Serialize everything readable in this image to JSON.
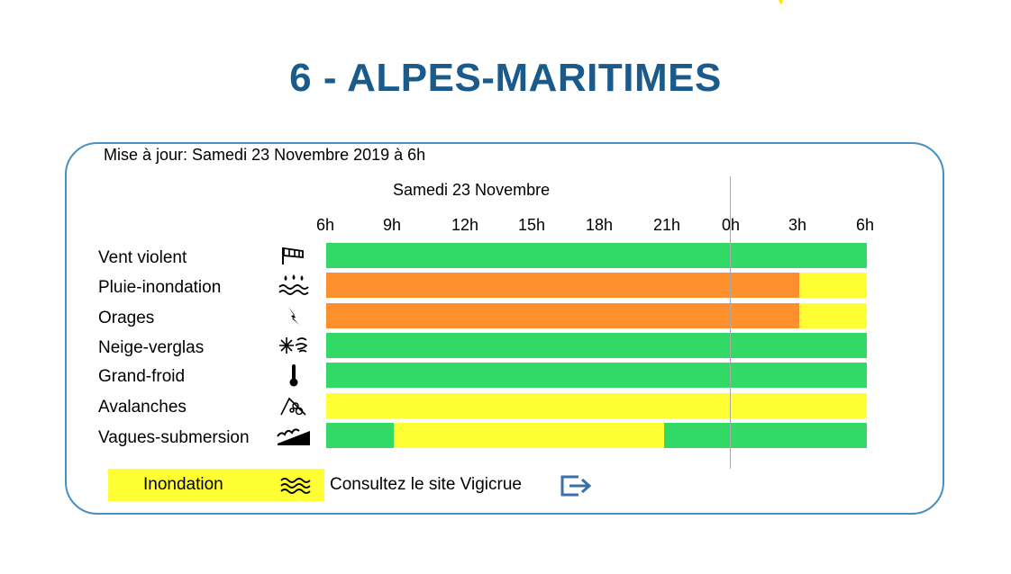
{
  "title": "6 - ALPES-MARITIMES",
  "update_text": "Mise à jour: Samedi 23 Novembre 2019 à 6h",
  "day_label": "Samedi 23 Novembre",
  "hours": [
    "6h",
    "9h",
    "12h",
    "15h",
    "18h",
    "21h",
    "0h",
    "3h",
    "6h"
  ],
  "colors": {
    "green": "#33d966",
    "orange": "#fd902c",
    "yellow": "#ffff33",
    "title_blue": "#1a5b8c",
    "panel_border": "#4a8fc2"
  },
  "rows": [
    {
      "label": "Vent violent",
      "icon": "windsock-icon",
      "segments": [
        {
          "level": "green",
          "hours": 24
        }
      ]
    },
    {
      "label": "Pluie-inondation",
      "icon": "rain-flood-icon",
      "segments": [
        {
          "level": "orange",
          "hours": 21
        },
        {
          "level": "yellow",
          "hours": 3
        }
      ]
    },
    {
      "label": "Orages",
      "icon": "lightning-icon",
      "segments": [
        {
          "level": "orange",
          "hours": 21
        },
        {
          "level": "yellow",
          "hours": 3
        }
      ]
    },
    {
      "label": "Neige-verglas",
      "icon": "snow-ice-icon",
      "segments": [
        {
          "level": "green",
          "hours": 24
        }
      ]
    },
    {
      "label": "Grand-froid",
      "icon": "thermometer-icon",
      "segments": [
        {
          "level": "green",
          "hours": 24
        }
      ]
    },
    {
      "label": "Avalanches",
      "icon": "avalanche-icon",
      "segments": [
        {
          "level": "yellow",
          "hours": 24
        }
      ]
    },
    {
      "label": "Vagues-submersion",
      "icon": "wave-submersion-icon",
      "segments": [
        {
          "level": "green",
          "hours": 3
        },
        {
          "level": "yellow",
          "hours": 12
        },
        {
          "level": "green",
          "hours": 9
        }
      ]
    }
  ],
  "legend": {
    "label": "Inondation",
    "icon": "flood-waves-icon",
    "link_text": "Consultez le site Vigicrue",
    "link_icon": "external-link-icon"
  }
}
